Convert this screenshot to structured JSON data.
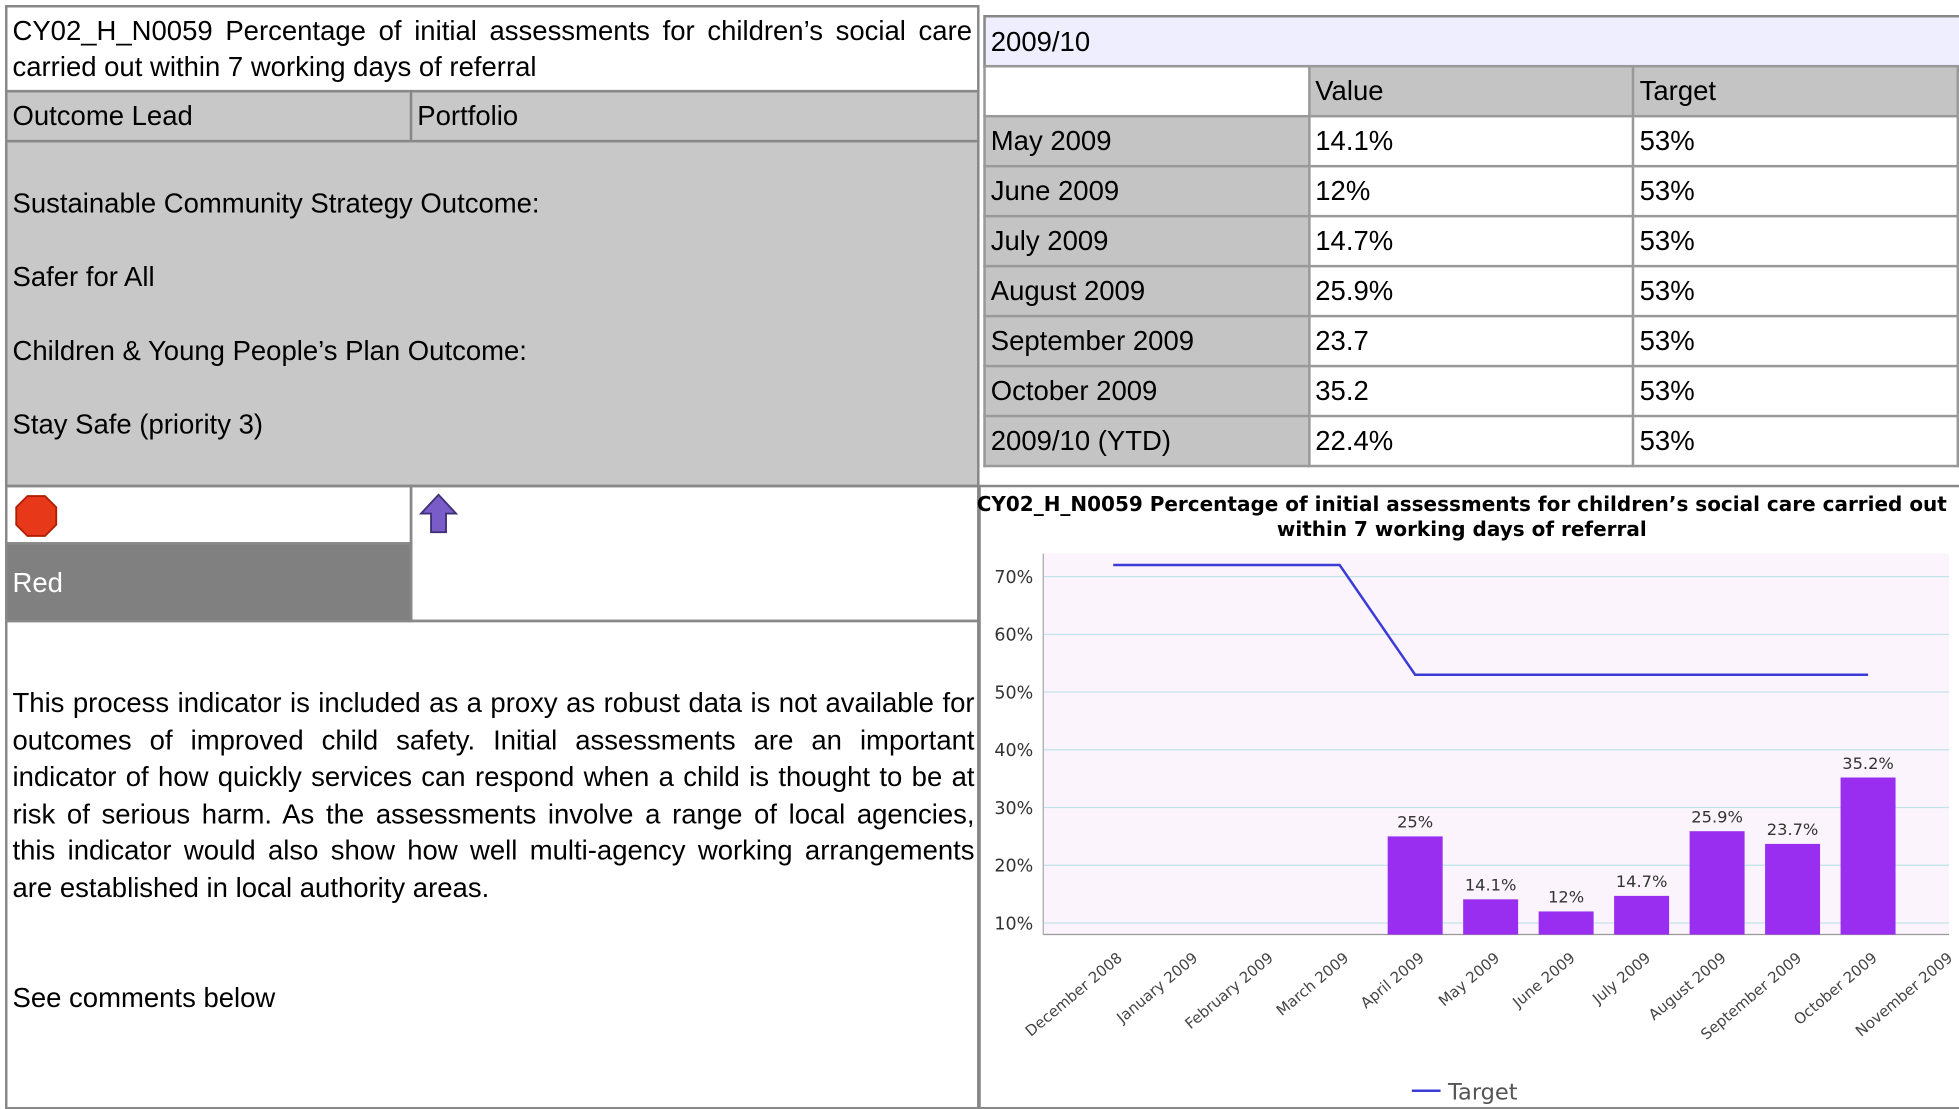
{
  "header": {
    "title": "CY02_H_N0059 Percentage of initial assessments for children’s social care carried out within 7 working days of referral",
    "outcome_lead": "Outcome Lead",
    "portfolio": "Portfolio"
  },
  "outcomes": [
    "Sustainable Community Strategy Outcome:",
    "Safer for All",
    "Children & Young People’s Plan Outcome:",
    "Stay Safe (priority 3)"
  ],
  "status": {
    "label": "Red"
  },
  "description": [
    "This process indicator is included as a proxy as robust data is not available for outcomes of improved child safety. Initial assessments are an important indicator of how quickly services can respond when a child is thought to be at risk of serious harm. As the assessments involve a range of local agencies, this indicator would also show how well multi-agency working arrangements are established in local authority areas.",
    "See comments below"
  ],
  "table": {
    "period": "2009/10",
    "columns": [
      "Value",
      "Target"
    ],
    "rows": [
      [
        "May 2009",
        "14.1%",
        "53%"
      ],
      [
        "June 2009",
        "12%",
        "53%"
      ],
      [
        "July 2009",
        "14.7%",
        "53%"
      ],
      [
        "August 2009",
        "25.9%",
        "53%"
      ],
      [
        "September 2009",
        "23.7",
        "53%"
      ],
      [
        "October 2009",
        "35.2",
        "53%"
      ],
      [
        "2009/10 (YTD)",
        "22.4%",
        "53%"
      ]
    ]
  },
  "chart_data": {
    "type": "bar",
    "title": "CY02_H_N0059 Percentage of initial assessments for children’s social care carried out within 7 working days of referral",
    "categories": [
      "December 2008",
      "January 2009",
      "February 2009",
      "March 2009",
      "April 2009",
      "May 2009",
      "June 2009",
      "July 2009",
      "August 2009",
      "September 2009",
      "October 2009",
      "November 2009"
    ],
    "series": [
      {
        "type": "bar",
        "color": "#9a2ef0",
        "values": [
          null,
          null,
          null,
          null,
          25,
          14.1,
          12,
          14.7,
          25.9,
          23.7,
          35.2,
          null
        ],
        "value_labels": [
          null,
          null,
          null,
          null,
          "25%",
          "14.1%",
          "12%",
          "14.7%",
          "25.9%",
          "23.7%",
          "35.2%",
          null
        ]
      },
      {
        "name": "Target",
        "type": "line",
        "color": "#3b3bd6",
        "values": [
          72,
          72,
          72,
          72,
          53,
          53,
          53,
          53,
          53,
          53,
          53,
          null
        ]
      }
    ],
    "ylim": [
      8,
      74
    ],
    "yticks": [
      {
        "value": 10,
        "label": "10%"
      },
      {
        "value": 20,
        "label": "20%"
      },
      {
        "value": 30,
        "label": "30%"
      },
      {
        "value": 40,
        "label": "40%"
      },
      {
        "value": 50,
        "label": "50%"
      },
      {
        "value": 60,
        "label": "60%"
      },
      {
        "value": 70,
        "label": "70%"
      }
    ],
    "grid": true,
    "legend": "bottom"
  }
}
